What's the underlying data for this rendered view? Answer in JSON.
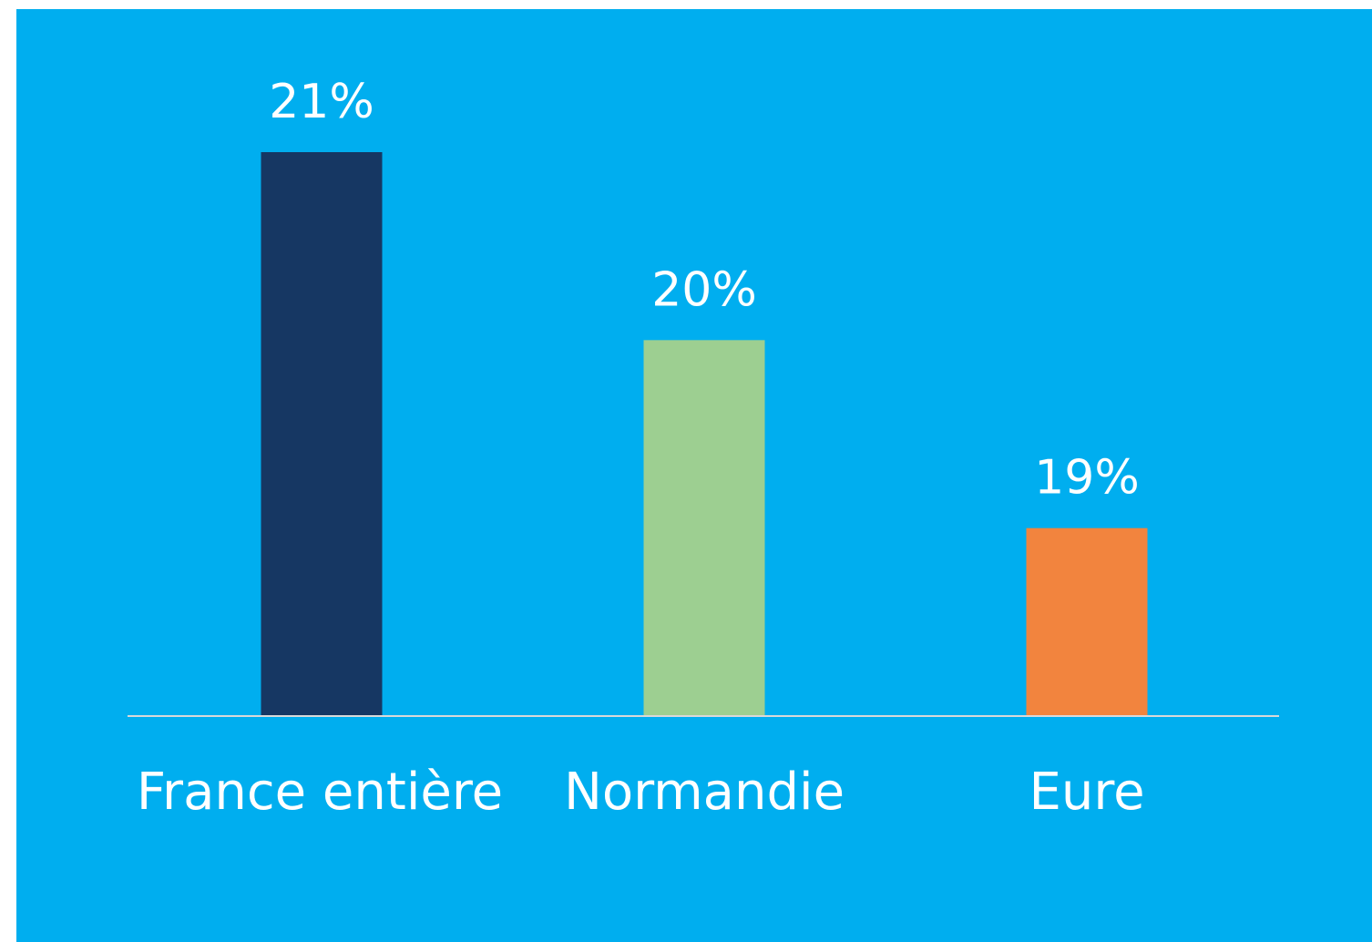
{
  "chart_data": {
    "type": "bar",
    "categories": [
      "France entière",
      "Normandie",
      "Eure"
    ],
    "values": [
      21,
      20,
      19
    ],
    "value_labels": [
      "21%",
      "20%",
      "19%"
    ],
    "colors": [
      "#163763",
      "#9dcf91",
      "#f2843e"
    ],
    "ylim": [
      18,
      21
    ]
  }
}
